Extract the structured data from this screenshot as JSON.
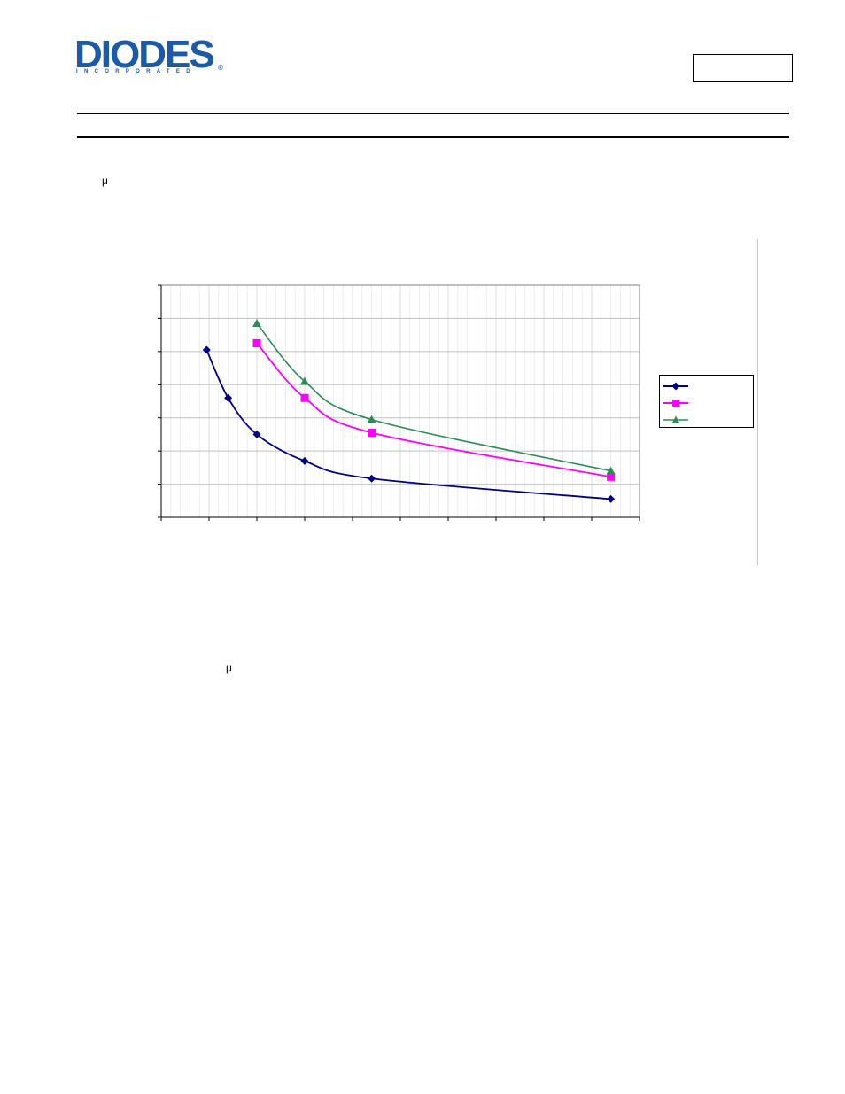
{
  "header": {
    "logo_text": "DIODES",
    "logo_subtext": "INCORPORATED",
    "logo_registered": "®",
    "doc_box_text": ""
  },
  "labels": {
    "mu_upper": "μ",
    "mu_lower": "μ"
  },
  "colors": {
    "logo_blue": "#1a5aa6",
    "series_1": "#000080",
    "series_2": "#ff00ff",
    "series_3": "#2e8b57",
    "grid": "#c0c0c0"
  },
  "chart_data": {
    "type": "line",
    "title": "",
    "xlabel": "",
    "ylabel": "",
    "xlim": [
      0,
      10
    ],
    "ylim": [
      0,
      7
    ],
    "grid": true,
    "legend_position": "right",
    "series": [
      {
        "name": "",
        "marker": "diamond",
        "x": [
          0.95,
          1.4,
          2.0,
          3.0,
          4.4,
          9.4
        ],
        "y": [
          5.05,
          3.6,
          2.5,
          1.7,
          1.17,
          0.55
        ]
      },
      {
        "name": "",
        "marker": "square",
        "x": [
          2.0,
          3.0,
          4.4,
          9.4
        ],
        "y": [
          5.25,
          3.6,
          2.55,
          1.22
        ]
      },
      {
        "name": "",
        "marker": "triangle",
        "x": [
          2.0,
          3.0,
          4.4,
          9.4
        ],
        "y": [
          5.85,
          4.1,
          2.95,
          1.4
        ]
      }
    ]
  }
}
